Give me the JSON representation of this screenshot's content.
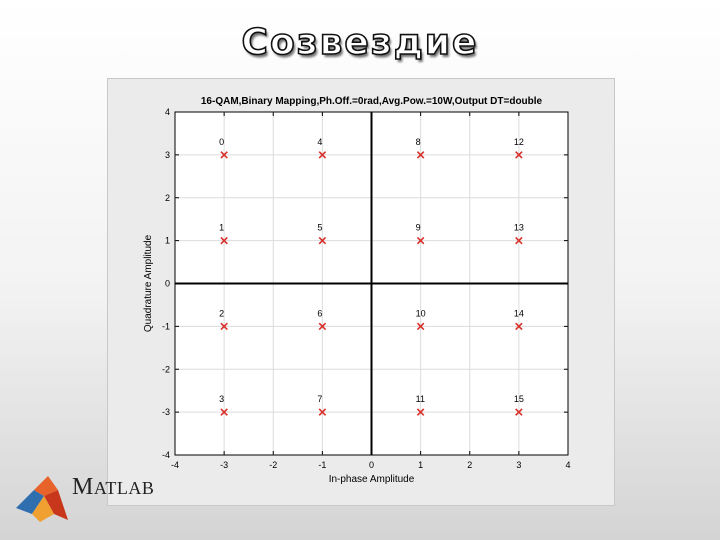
{
  "slide": {
    "title": "Созвездие"
  },
  "logo": {
    "text_first": "M",
    "text_rest": "ATLAB"
  },
  "chart_data": {
    "type": "scatter",
    "title": "16-QAM,Binary Mapping,Ph.Off.=0rad,Avg.Pow.=10W,Output DT=double",
    "xlabel": "In-phase Amplitude",
    "ylabel": "Quadrature Amplitude",
    "xlim": [
      -4,
      4
    ],
    "ylim": [
      -4,
      4
    ],
    "xticks": [
      "-4",
      "-3",
      "-2",
      "-1",
      "0",
      "1",
      "2",
      "3",
      "4"
    ],
    "yticks": [
      "-4",
      "-3",
      "-2",
      "-1",
      "0",
      "1",
      "2",
      "3",
      "4"
    ],
    "grid": true,
    "marker": "x",
    "marker_color": "#d9302a",
    "points": [
      {
        "x": -3,
        "y": 3,
        "label": "0"
      },
      {
        "x": -3,
        "y": 1,
        "label": "1"
      },
      {
        "x": -3,
        "y": -1,
        "label": "2"
      },
      {
        "x": -3,
        "y": -3,
        "label": "3"
      },
      {
        "x": -1,
        "y": 3,
        "label": "4"
      },
      {
        "x": -1,
        "y": 1,
        "label": "5"
      },
      {
        "x": -1,
        "y": -1,
        "label": "6"
      },
      {
        "x": -1,
        "y": -3,
        "label": "7"
      },
      {
        "x": 1,
        "y": 3,
        "label": "8"
      },
      {
        "x": 1,
        "y": 1,
        "label": "9"
      },
      {
        "x": 1,
        "y": -1,
        "label": "10"
      },
      {
        "x": 1,
        "y": -3,
        "label": "11"
      },
      {
        "x": 3,
        "y": 3,
        "label": "12"
      },
      {
        "x": 3,
        "y": 1,
        "label": "13"
      },
      {
        "x": 3,
        "y": -1,
        "label": "14"
      },
      {
        "x": 3,
        "y": -3,
        "label": "15"
      }
    ]
  }
}
